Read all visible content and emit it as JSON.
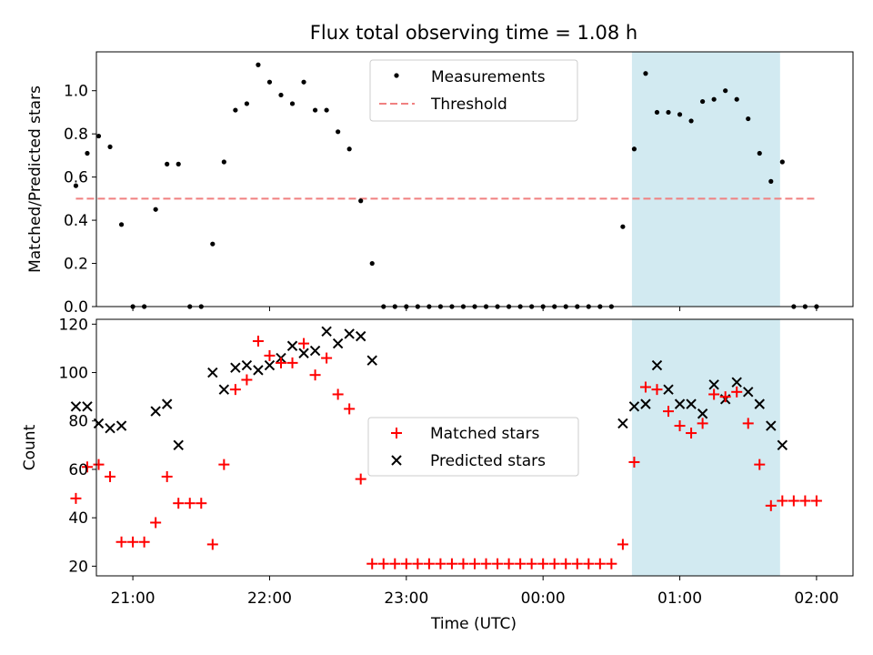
{
  "figure": {
    "title": "Flux total observing time = 1.08 h",
    "xlabel": "Time (UTC)",
    "x_ticks": [
      "21:00",
      "22:00",
      "23:00",
      "00:00",
      "01:00",
      "02:00"
    ]
  },
  "chart_data": [
    {
      "type": "scatter",
      "title": "Flux total observing time = 1.08 h",
      "ylabel": "Matched/Predicted stars",
      "xlabel": "",
      "x_range": [
        "20:44",
        "02:16"
      ],
      "ylim": [
        0,
        1.18
      ],
      "y_ticks": [
        "0.0",
        "0.2",
        "0.4",
        "0.6",
        "0.8",
        "1.0"
      ],
      "legend_position": "upper-center",
      "highlight_span": {
        "from": "00:39",
        "to": "01:44",
        "color": "#add8e6"
      },
      "series": [
        {
          "name": "Measurements",
          "marker": "dot",
          "color": "#000000",
          "points": [
            [
              "20:35",
              0.56
            ],
            [
              "20:40",
              0.71
            ],
            [
              "20:45",
              0.79
            ],
            [
              "20:50",
              0.74
            ],
            [
              "20:55",
              0.38
            ],
            [
              "21:00",
              0.0
            ],
            [
              "21:05",
              0.0
            ],
            [
              "21:10",
              0.45
            ],
            [
              "21:15",
              0.66
            ],
            [
              "21:20",
              0.66
            ],
            [
              "21:25",
              0.0
            ],
            [
              "21:30",
              0.0
            ],
            [
              "21:35",
              0.29
            ],
            [
              "21:40",
              0.67
            ],
            [
              "21:45",
              0.91
            ],
            [
              "21:50",
              0.94
            ],
            [
              "21:55",
              1.12
            ],
            [
              "22:00",
              1.04
            ],
            [
              "22:05",
              0.98
            ],
            [
              "22:10",
              0.94
            ],
            [
              "22:15",
              1.04
            ],
            [
              "22:20",
              0.91
            ],
            [
              "22:25",
              0.91
            ],
            [
              "22:30",
              0.81
            ],
            [
              "22:35",
              0.73
            ],
            [
              "22:40",
              0.49
            ],
            [
              "22:45",
              0.2
            ],
            [
              "22:50",
              0.0
            ],
            [
              "22:55",
              0.0
            ],
            [
              "23:00",
              0.0
            ],
            [
              "23:05",
              0.0
            ],
            [
              "23:10",
              0.0
            ],
            [
              "23:15",
              0.0
            ],
            [
              "23:20",
              0.0
            ],
            [
              "23:25",
              0.0
            ],
            [
              "23:30",
              0.0
            ],
            [
              "23:35",
              0.0
            ],
            [
              "23:40",
              0.0
            ],
            [
              "23:45",
              0.0
            ],
            [
              "23:50",
              0.0
            ],
            [
              "23:55",
              0.0
            ],
            [
              "00:00",
              0.0
            ],
            [
              "00:05",
              0.0
            ],
            [
              "00:10",
              0.0
            ],
            [
              "00:15",
              0.0
            ],
            [
              "00:20",
              0.0
            ],
            [
              "00:25",
              0.0
            ],
            [
              "00:30",
              0.0
            ],
            [
              "00:35",
              0.37
            ],
            [
              "00:40",
              0.73
            ],
            [
              "00:45",
              1.08
            ],
            [
              "00:50",
              0.9
            ],
            [
              "00:55",
              0.9
            ],
            [
              "01:00",
              0.89
            ],
            [
              "01:05",
              0.86
            ],
            [
              "01:10",
              0.95
            ],
            [
              "01:15",
              0.96
            ],
            [
              "01:20",
              1.0
            ],
            [
              "01:25",
              0.96
            ],
            [
              "01:30",
              0.87
            ],
            [
              "01:35",
              0.71
            ],
            [
              "01:40",
              0.58
            ],
            [
              "01:45",
              0.67
            ],
            [
              "01:50",
              0.0
            ],
            [
              "01:55",
              0.0
            ],
            [
              "02:00",
              0.0
            ]
          ]
        },
        {
          "name": "Threshold",
          "marker": "dashed-line",
          "color": "#f08080",
          "points": [
            [
              "20:35",
              0.5
            ],
            [
              "02:00",
              0.5
            ]
          ]
        }
      ]
    },
    {
      "type": "scatter",
      "title": "",
      "ylabel": "Count",
      "xlabel": "Time (UTC)",
      "x_range": [
        "20:44",
        "02:16"
      ],
      "ylim": [
        16,
        122
      ],
      "y_ticks": [
        "20",
        "40",
        "60",
        "80",
        "100",
        "120"
      ],
      "legend_position": "center",
      "highlight_span": {
        "from": "00:39",
        "to": "01:44",
        "color": "#add8e6"
      },
      "series": [
        {
          "name": "Matched stars",
          "marker": "plus",
          "color": "#ff0000",
          "points": [
            [
              "20:35",
              48
            ],
            [
              "20:40",
              61
            ],
            [
              "20:45",
              62
            ],
            [
              "20:50",
              57
            ],
            [
              "20:55",
              30
            ],
            [
              "21:00",
              30
            ],
            [
              "21:05",
              30
            ],
            [
              "21:10",
              38
            ],
            [
              "21:15",
              57
            ],
            [
              "21:20",
              46
            ],
            [
              "21:25",
              46
            ],
            [
              "21:30",
              46
            ],
            [
              "21:35",
              29
            ],
            [
              "21:40",
              62
            ],
            [
              "21:45",
              93
            ],
            [
              "21:50",
              97
            ],
            [
              "21:55",
              113
            ],
            [
              "22:00",
              107
            ],
            [
              "22:05",
              104
            ],
            [
              "22:10",
              104
            ],
            [
              "22:15",
              112
            ],
            [
              "22:20",
              99
            ],
            [
              "22:25",
              106
            ],
            [
              "22:30",
              91
            ],
            [
              "22:35",
              85
            ],
            [
              "22:40",
              56
            ],
            [
              "22:45",
              21
            ],
            [
              "22:50",
              21
            ],
            [
              "22:55",
              21
            ],
            [
              "23:00",
              21
            ],
            [
              "23:05",
              21
            ],
            [
              "23:10",
              21
            ],
            [
              "23:15",
              21
            ],
            [
              "23:20",
              21
            ],
            [
              "23:25",
              21
            ],
            [
              "23:30",
              21
            ],
            [
              "23:35",
              21
            ],
            [
              "23:40",
              21
            ],
            [
              "23:45",
              21
            ],
            [
              "23:50",
              21
            ],
            [
              "23:55",
              21
            ],
            [
              "00:00",
              21
            ],
            [
              "00:05",
              21
            ],
            [
              "00:10",
              21
            ],
            [
              "00:15",
              21
            ],
            [
              "00:20",
              21
            ],
            [
              "00:25",
              21
            ],
            [
              "00:30",
              21
            ],
            [
              "00:35",
              29
            ],
            [
              "00:40",
              63
            ],
            [
              "00:45",
              94
            ],
            [
              "00:50",
              93
            ],
            [
              "00:55",
              84
            ],
            [
              "01:00",
              78
            ],
            [
              "01:05",
              75
            ],
            [
              "01:10",
              79
            ],
            [
              "01:15",
              91
            ],
            [
              "01:20",
              90
            ],
            [
              "01:25",
              92
            ],
            [
              "01:30",
              79
            ],
            [
              "01:35",
              62
            ],
            [
              "01:40",
              45
            ],
            [
              "01:45",
              47
            ],
            [
              "01:50",
              47
            ],
            [
              "01:55",
              47
            ],
            [
              "02:00",
              47
            ]
          ]
        },
        {
          "name": "Predicted stars",
          "marker": "x",
          "color": "#000000",
          "points": [
            [
              "20:35",
              86
            ],
            [
              "20:40",
              86
            ],
            [
              "20:45",
              79
            ],
            [
              "20:50",
              77
            ],
            [
              "20:55",
              78
            ],
            [
              "21:10",
              84
            ],
            [
              "21:15",
              87
            ],
            [
              "21:20",
              70
            ],
            [
              "21:35",
              100
            ],
            [
              "21:40",
              93
            ],
            [
              "21:45",
              102
            ],
            [
              "21:50",
              103
            ],
            [
              "21:55",
              101
            ],
            [
              "22:00",
              103
            ],
            [
              "22:05",
              106
            ],
            [
              "22:10",
              111
            ],
            [
              "22:15",
              108
            ],
            [
              "22:20",
              109
            ],
            [
              "22:25",
              117
            ],
            [
              "22:30",
              112
            ],
            [
              "22:35",
              116
            ],
            [
              "22:40",
              115
            ],
            [
              "22:45",
              105
            ],
            [
              "00:35",
              79
            ],
            [
              "00:40",
              86
            ],
            [
              "00:45",
              87
            ],
            [
              "00:50",
              103
            ],
            [
              "00:55",
              93
            ],
            [
              "01:00",
              87
            ],
            [
              "01:05",
              87
            ],
            [
              "01:10",
              83
            ],
            [
              "01:15",
              95
            ],
            [
              "01:20",
              89
            ],
            [
              "01:25",
              96
            ],
            [
              "01:30",
              92
            ],
            [
              "01:35",
              87
            ],
            [
              "01:40",
              78
            ],
            [
              "01:45",
              70
            ]
          ]
        }
      ]
    }
  ]
}
